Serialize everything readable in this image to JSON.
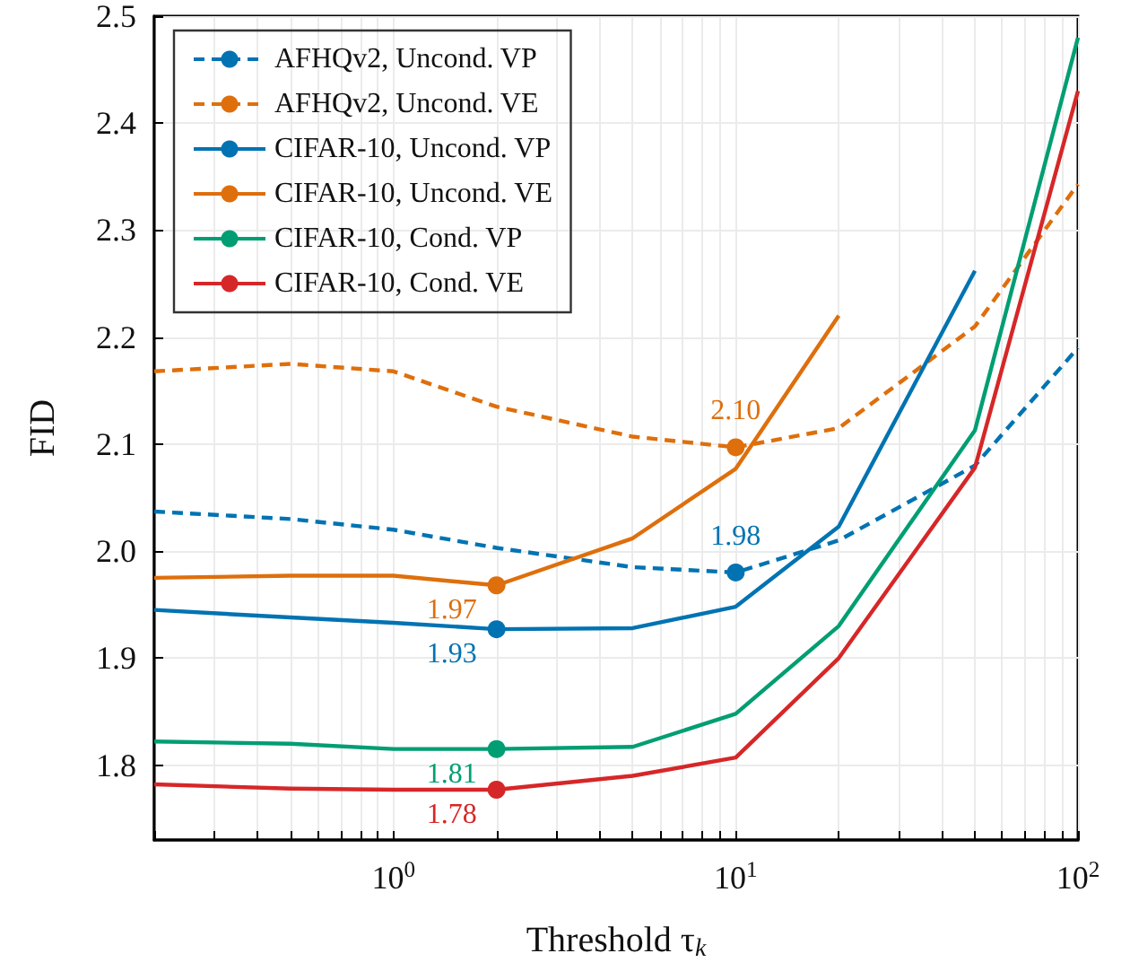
{
  "chart_data": {
    "type": "line",
    "xlabel": "Threshold τ$_{k}$",
    "ylabel": "FID",
    "x": [
      0.2,
      0.5,
      1,
      2,
      5,
      10,
      20,
      50,
      100
    ],
    "log": "x",
    "xlim": [
      0.2,
      100
    ],
    "ylim": [
      1.73,
      2.5
    ],
    "xticks": [
      {
        "value": 0.2,
        "label": null
      },
      {
        "value": 0.3,
        "label": null
      },
      {
        "value": 0.4,
        "label": null
      },
      {
        "value": 0.5,
        "label": null
      },
      {
        "value": 0.6,
        "label": null
      },
      {
        "value": 0.7,
        "label": null
      },
      {
        "value": 0.8,
        "label": null
      },
      {
        "value": 0.9,
        "label": null
      },
      {
        "value": 1,
        "label": "10$^{0}$"
      },
      {
        "value": 2,
        "label": null
      },
      {
        "value": 3,
        "label": null
      },
      {
        "value": 4,
        "label": null
      },
      {
        "value": 5,
        "label": null
      },
      {
        "value": 6,
        "label": null
      },
      {
        "value": 7,
        "label": null
      },
      {
        "value": 8,
        "label": null
      },
      {
        "value": 9,
        "label": null
      },
      {
        "value": 10,
        "label": "10$^{1}$"
      },
      {
        "value": 20,
        "label": null
      },
      {
        "value": 30,
        "label": null
      },
      {
        "value": 40,
        "label": null
      },
      {
        "value": 50,
        "label": null
      },
      {
        "value": 60,
        "label": null
      },
      {
        "value": 70,
        "label": null
      },
      {
        "value": 80,
        "label": null
      },
      {
        "value": 90,
        "label": null
      },
      {
        "value": 100,
        "label": "10$^{2}$"
      }
    ],
    "yticks": [
      1.8,
      1.9,
      {
        "value": 2.0,
        "label": "2.0"
      },
      2.1,
      2.2,
      2.3,
      2.4,
      2.5
    ],
    "grid": true,
    "legend": "top left",
    "series": [
      {
        "name": "AFHQv2, Uncond. VP",
        "color": "#0173b2",
        "line_style": "dashed",
        "values": [
          2.037,
          2.03,
          2.02,
          2.003,
          1.985,
          1.98,
          2.01,
          2.08,
          2.19
        ],
        "value_labels": [
          null,
          null,
          null,
          null,
          null,
          "1.98",
          null,
          null,
          null
        ]
      },
      {
        "name": "AFHQv2, Uncond. VE",
        "color": "#de6f0c",
        "line_style": "dashed",
        "values": [
          2.168,
          2.175,
          2.168,
          2.135,
          2.107,
          2.097,
          2.115,
          2.21,
          2.343
        ],
        "value_labels": [
          null,
          null,
          null,
          null,
          null,
          "2.10",
          null,
          null,
          null
        ]
      },
      {
        "name": "CIFAR-10, Uncond. VP",
        "color": "#0173b2",
        "line_style": "solid",
        "values": [
          1.945,
          1.938,
          1.933,
          1.927,
          1.928,
          1.948,
          2.023,
          2.262,
          null
        ],
        "value_labels": [
          null,
          null,
          null,
          "1.93",
          null,
          null,
          null,
          null,
          null
        ]
      },
      {
        "name": "CIFAR-10, Uncond. VE",
        "color": "#de6f0c",
        "line_style": "solid",
        "values": [
          1.975,
          1.977,
          1.977,
          1.968,
          2.012,
          2.077,
          2.22,
          null,
          null
        ],
        "value_labels": [
          null,
          null,
          null,
          "1.97",
          null,
          null,
          null,
          null,
          null
        ]
      },
      {
        "name": "CIFAR-10, Cond. VP",
        "color": "#029e73",
        "line_style": "solid",
        "values": [
          1.822,
          1.82,
          1.815,
          1.815,
          1.817,
          1.848,
          1.93,
          2.113,
          2.48
        ],
        "value_labels": [
          null,
          null,
          null,
          "1.81",
          null,
          null,
          null,
          null,
          null
        ]
      },
      {
        "name": "CIFAR-10, Cond. VE",
        "color": "#d62728",
        "line_style": "solid",
        "values": [
          1.782,
          1.778,
          1.777,
          1.777,
          1.79,
          1.807,
          1.9,
          2.078,
          2.43
        ],
        "value_labels": [
          null,
          null,
          null,
          "1.78",
          null,
          null,
          null,
          null,
          null
        ]
      }
    ]
  }
}
